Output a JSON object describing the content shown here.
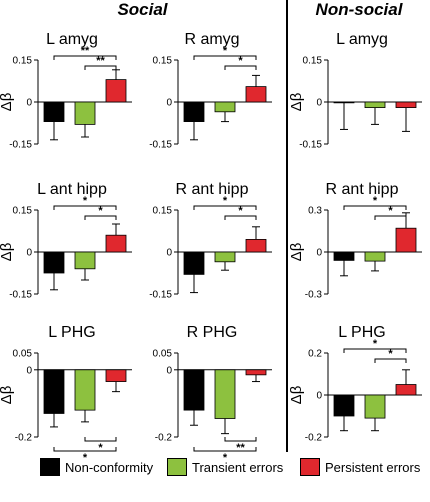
{
  "headers": {
    "left": "Social",
    "right": "Non-social"
  },
  "colors": {
    "noncon": "#000000",
    "transient": "#8dc13f",
    "persistent": "#e0282e"
  },
  "legend": {
    "noncon": "Non-conformity",
    "transient": "Transient errors",
    "persistent": "Persistent errors"
  },
  "chart_data": [
    {
      "type": "bar",
      "title": "L amyg",
      "ylabel": "Δβ",
      "categories": [
        "Non-conformity",
        "Transient errors",
        "Persistent errors"
      ],
      "values": [
        -0.07,
        -0.08,
        0.08
      ],
      "errors": [
        0.065,
        0.045,
        0.035
      ],
      "ylim": [
        -0.15,
        0.15
      ],
      "yticks": [
        "0.15",
        "0",
        "-0.15"
      ],
      "significance": [
        {
          "label": "**",
          "from": 0,
          "to": 2,
          "pos": "top"
        },
        {
          "label": "**",
          "from": 1,
          "to": 2,
          "pos": "top"
        }
      ]
    },
    {
      "type": "bar",
      "title": "R amyg",
      "ylabel": "",
      "categories": [
        "Non-conformity",
        "Transient errors",
        "Persistent errors"
      ],
      "values": [
        -0.07,
        -0.035,
        0.055
      ],
      "errors": [
        0.065,
        0.035,
        0.04
      ],
      "ylim": [
        -0.15,
        0.15
      ],
      "yticks": [
        "0.15",
        "0",
        "-0.15"
      ],
      "significance": [
        {
          "label": "*",
          "from": 0,
          "to": 2,
          "pos": "top"
        },
        {
          "label": "*",
          "from": 1,
          "to": 2,
          "pos": "top"
        }
      ]
    },
    {
      "type": "bar",
      "title": "L amyg",
      "ylabel": "Δβ",
      "categories": [
        "Non-conformity",
        "Transient errors",
        "Persistent errors"
      ],
      "values": [
        -0.003,
        -0.02,
        -0.02
      ],
      "errors": [
        0.095,
        0.06,
        0.085
      ],
      "ylim": [
        -0.15,
        0.15
      ],
      "yticks": [
        "0.15",
        "0",
        "-0.15"
      ],
      "significance": []
    },
    {
      "type": "bar",
      "title": "L ant hipp",
      "ylabel": "Δβ",
      "categories": [
        "Non-conformity",
        "Transient errors",
        "Persistent errors"
      ],
      "values": [
        -0.075,
        -0.06,
        0.06
      ],
      "errors": [
        0.06,
        0.04,
        0.04
      ],
      "ylim": [
        -0.15,
        0.15
      ],
      "yticks": [
        "0.15",
        "0",
        "-0.15"
      ],
      "significance": [
        {
          "label": "*",
          "from": 0,
          "to": 2,
          "pos": "top"
        },
        {
          "label": "*",
          "from": 1,
          "to": 2,
          "pos": "top"
        }
      ]
    },
    {
      "type": "bar",
      "title": "R ant hipp",
      "ylabel": "",
      "categories": [
        "Non-conformity",
        "Transient errors",
        "Persistent errors"
      ],
      "values": [
        -0.08,
        -0.035,
        0.045
      ],
      "errors": [
        0.065,
        0.03,
        0.045
      ],
      "ylim": [
        -0.15,
        0.15
      ],
      "yticks": [
        "0.15",
        "0",
        "-0.15"
      ],
      "significance": [
        {
          "label": "*",
          "from": 0,
          "to": 2,
          "pos": "top"
        },
        {
          "label": "*",
          "from": 1,
          "to": 2,
          "pos": "top"
        }
      ]
    },
    {
      "type": "bar",
      "title": "R ant hipp",
      "ylabel": "Δβ",
      "categories": [
        "Non-conformity",
        "Transient errors",
        "Persistent errors"
      ],
      "values": [
        -0.06,
        -0.065,
        0.17
      ],
      "errors": [
        0.11,
        0.07,
        0.11
      ],
      "ylim": [
        -0.3,
        0.3
      ],
      "yticks": [
        "0.3",
        "0",
        "-0.3"
      ],
      "significance": [
        {
          "label": "*",
          "from": 0,
          "to": 2,
          "pos": "top"
        },
        {
          "label": "*",
          "from": 1,
          "to": 2,
          "pos": "top"
        }
      ]
    },
    {
      "type": "bar",
      "title": "L PHG",
      "ylabel": "Δβ",
      "categories": [
        "Non-conformity",
        "Transient errors",
        "Persistent errors"
      ],
      "values": [
        -0.13,
        -0.12,
        -0.035
      ],
      "errors": [
        0.04,
        0.035,
        0.03
      ],
      "ylim": [
        -0.2,
        0.05
      ],
      "yticks": [
        "0.05",
        "0",
        "-0.2"
      ],
      "significance": [
        {
          "label": "*",
          "from": 1,
          "to": 2,
          "pos": "bottom"
        },
        {
          "label": "*",
          "from": 0,
          "to": 2,
          "pos": "bottom"
        }
      ]
    },
    {
      "type": "bar",
      "title": "R PHG",
      "ylabel": "",
      "categories": [
        "Non-conformity",
        "Transient errors",
        "Persistent errors"
      ],
      "values": [
        -0.12,
        -0.145,
        -0.015
      ],
      "errors": [
        0.045,
        0.045,
        0.02
      ],
      "ylim": [
        -0.2,
        0.05
      ],
      "yticks": [
        "0.05",
        "0",
        "-0.2"
      ],
      "significance": [
        {
          "label": "**",
          "from": 1,
          "to": 2,
          "pos": "bottom"
        },
        {
          "label": "*",
          "from": 0,
          "to": 2,
          "pos": "bottom"
        }
      ]
    },
    {
      "type": "bar",
      "title": "L PHG",
      "ylabel": "Δβ",
      "categories": [
        "Non-conformity",
        "Transient errors",
        "Persistent errors"
      ],
      "values": [
        -0.1,
        -0.11,
        0.05
      ],
      "errors": [
        0.07,
        0.06,
        0.07
      ],
      "ylim": [
        -0.2,
        0.2
      ],
      "yticks": [
        "0.2",
        "0",
        "-0.2"
      ],
      "significance": [
        {
          "label": "*",
          "from": 0,
          "to": 2,
          "pos": "top"
        },
        {
          "label": "*",
          "from": 1,
          "to": 2,
          "pos": "top"
        }
      ]
    }
  ]
}
